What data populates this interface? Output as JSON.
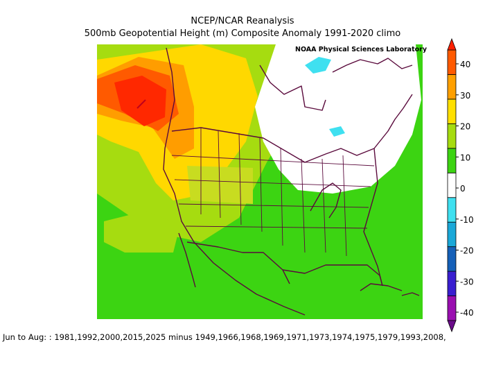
{
  "header": {
    "title": "NCEP/NCAR Reanalysis",
    "subtitle": "500mb Geopotential Height (m) Composite Anomaly 1991-2020 climo",
    "lab_label": "NOAA Physical Sciences Laboratory"
  },
  "footer": {
    "caption": "Jun to Aug: : 1981,1992,2000,2015,2025 minus 1949,1966,1968,1969,1971,1973,1974,1975,1979,1993,2008,"
  },
  "colorbar": {
    "ticks": [
      "40",
      "30",
      "20",
      "10",
      "0",
      "-10",
      "-20",
      "-30",
      "-40"
    ],
    "colors": [
      "#6a0a8a",
      "#9a0fb0",
      "#3a1fd0",
      "#1560b8",
      "#1aa8d8",
      "#3fe0f0",
      "#ffffff",
      "#3cd412",
      "#a6dc10",
      "#ffe000",
      "#ffa000",
      "#ff5a00",
      "#ff2000"
    ]
  },
  "map": {
    "colors": {
      "green": "#3cd412",
      "light_green": "#a6dc10",
      "yellow": "#ffd800",
      "orange": "#ff9d00",
      "red_orange": "#ff5a00",
      "red": "#ff2800",
      "white": "#ffffff",
      "cyan": "#3fe0f0",
      "border": "#5a0a3c"
    }
  }
}
